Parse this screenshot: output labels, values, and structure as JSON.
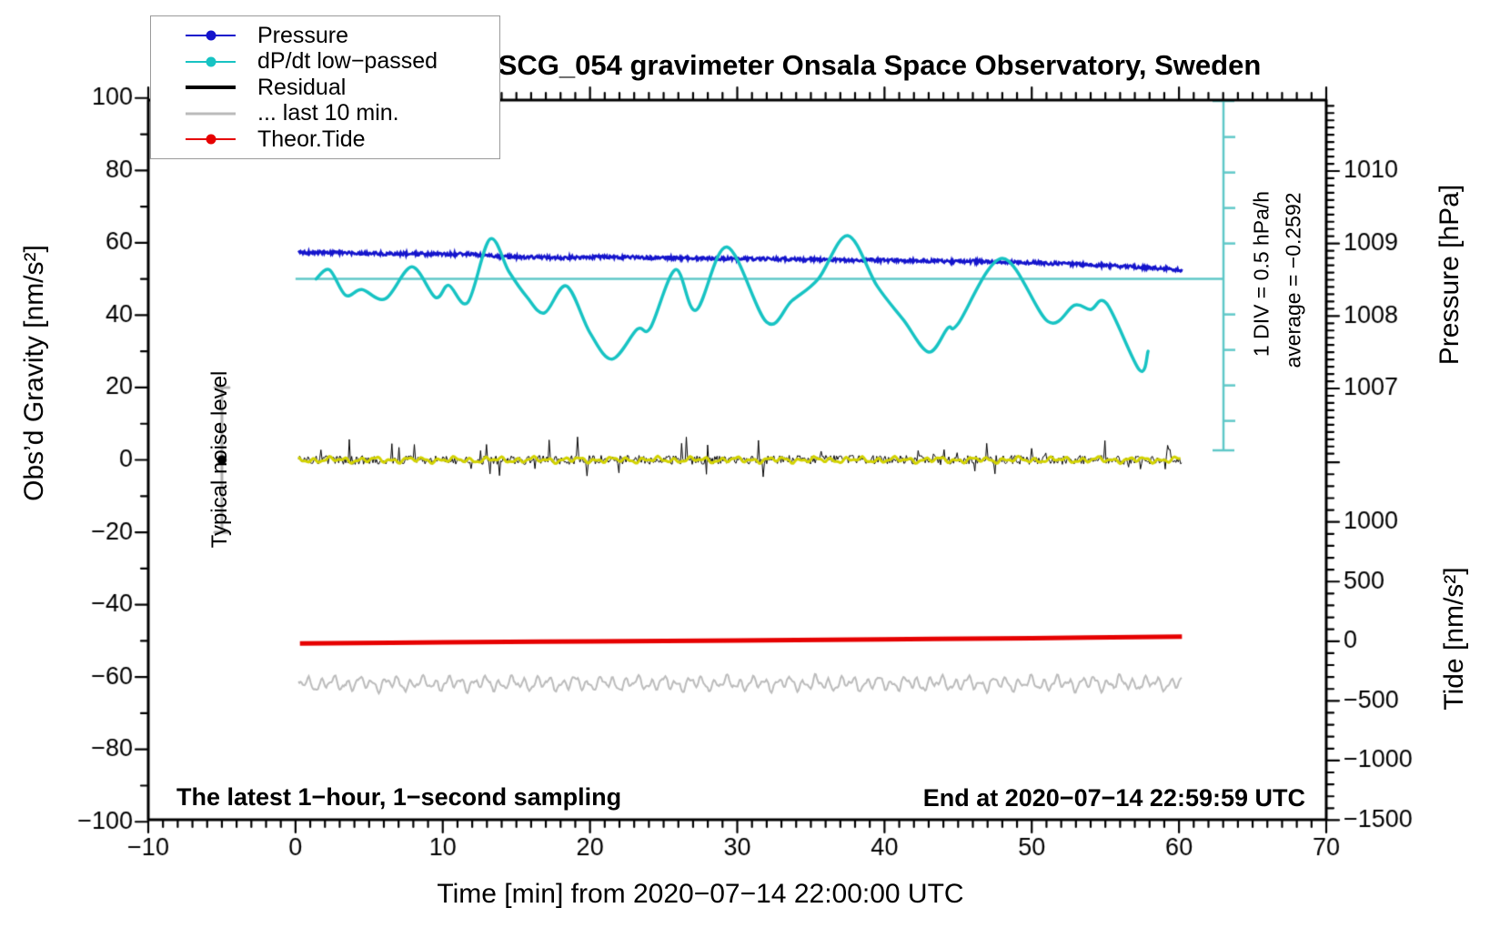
{
  "title": "SCG_054 gravimeter Onsala Space Observatory, Sweden",
  "colors": {
    "pressure_blue": "#1414cc",
    "dpdt_cyan": "#17c3c3",
    "reference_teal": "#5fc8c8",
    "residual_black": "#000000",
    "residual_smooth_yellow": "#d2d200",
    "last10_gray": "#bbbbbb",
    "tide_red": "#e60000",
    "noisebar_gray": "#b0b0b0",
    "frame_black": "#000000"
  },
  "legend": {
    "items": [
      {
        "label": "Pressure",
        "color": "#1414cc",
        "marker": "dot",
        "weight": 2.5
      },
      {
        "label": "dP/dt low−passed",
        "color": "#17c3c3",
        "marker": "dot",
        "weight": 2.5
      },
      {
        "label": "Residual",
        "color": "#000000",
        "marker": "line",
        "weight": 4
      },
      {
        "label": "... last 10 min.",
        "color": "#bbbbbb",
        "marker": "line",
        "weight": 3
      },
      {
        "label": "Theor.Tide",
        "color": "#e60000",
        "marker": "dot",
        "weight": 2.5
      }
    ]
  },
  "axes": {
    "x": {
      "title": "Time [min] from 2020−07−14 22:00:00 UTC",
      "range": [
        -10,
        70
      ],
      "major": 10,
      "minor": 1,
      "ticks": [
        {
          "v": -10,
          "l": "−10"
        },
        {
          "v": 0,
          "l": "0"
        },
        {
          "v": 10,
          "l": "10"
        },
        {
          "v": 20,
          "l": "20"
        },
        {
          "v": 30,
          "l": "30"
        },
        {
          "v": 40,
          "l": "40"
        },
        {
          "v": 50,
          "l": "50"
        },
        {
          "v": 60,
          "l": "60"
        },
        {
          "v": 70,
          "l": "70"
        }
      ]
    },
    "y_left": {
      "title": "Obs’d Gravity [nm/s²]",
      "range": [
        -100,
        100
      ],
      "major": 20,
      "minor": 10,
      "ticks": [
        {
          "v": 100,
          "l": "100"
        },
        {
          "v": 80,
          "l": "80"
        },
        {
          "v": 60,
          "l": "60"
        },
        {
          "v": 40,
          "l": "40"
        },
        {
          "v": 20,
          "l": "20"
        },
        {
          "v": 0,
          "l": "0"
        },
        {
          "v": -20,
          "l": "−20"
        },
        {
          "v": -40,
          "l": "−40"
        },
        {
          "v": -60,
          "l": "−60"
        },
        {
          "v": -80,
          "l": "−80"
        },
        {
          "v": -100,
          "l": "−100"
        }
      ]
    },
    "y_right_pressure": {
      "title": "Pressure [hPa]",
      "minor": 0.1,
      "ticks": [
        {
          "v": 1010,
          "l": "1010"
        },
        {
          "v": 1009,
          "l": "1009"
        },
        {
          "v": 1008,
          "l": "1008"
        },
        {
          "v": 1007,
          "l": "1007"
        }
      ]
    },
    "y_right_tide": {
      "title": "Tide [nm/s²]",
      "minor": 100,
      "ticks": [
        {
          "v": 1000,
          "l": "1000"
        },
        {
          "v": 500,
          "l": "500"
        },
        {
          "v": 0,
          "l": "0"
        },
        {
          "v": -500,
          "l": "−500"
        },
        {
          "v": -1000,
          "l": "−1000"
        },
        {
          "v": -1500,
          "l": "−1500"
        }
      ]
    }
  },
  "annotations": {
    "sampling": "The latest 1−hour, 1−second sampling",
    "end": "End at 2020−07−14 22:59:59 UTC",
    "noise_level": "Typical noise level",
    "div_scale": "1 DIV = 0.5 hPa/h",
    "average": "average = −0.2592"
  },
  "chart_data": {
    "type": "line",
    "title": "SCG_054 gravimeter Onsala Space Observatory, Sweden",
    "xlabel": "Time [min] from 2020-07-14 22:00:00 UTC",
    "x_range_min": [
      -10,
      70
    ],
    "y_left_label": "Obs'd Gravity [nm/s2]",
    "y_left_range": [
      -100,
      100
    ],
    "pressure_axis_labels": [
      1010,
      1009,
      1008,
      1007
    ],
    "tide_axis_labels": [
      1000,
      500,
      0,
      -500,
      -1000,
      -1500
    ],
    "grid": false,
    "legend_position": "top-left",
    "reference": {
      "dpdt_zero_at_gravity": 50,
      "div_value_hpa_per_h": 0.5,
      "dpdt_average_hpa_per_h": -0.2592,
      "noise_bar": {
        "center_gravity": 0,
        "half_span_gravity": 20,
        "time_min": -5
      }
    },
    "series": [
      {
        "name": "Pressure",
        "axis": "pressure",
        "unit": "hPa",
        "color": "#1414cc",
        "width": 2.6,
        "noise_hpa": 0.022,
        "points": [
          [
            0.2,
            1008.88
          ],
          [
            3,
            1008.875
          ],
          [
            6,
            1008.86
          ],
          [
            9,
            1008.855
          ],
          [
            12,
            1008.85
          ],
          [
            14,
            1008.82
          ],
          [
            16,
            1008.81
          ],
          [
            18,
            1008.805
          ],
          [
            21,
            1008.815
          ],
          [
            24,
            1008.805
          ],
          [
            27,
            1008.795
          ],
          [
            30,
            1008.79
          ],
          [
            33,
            1008.785
          ],
          [
            36,
            1008.775
          ],
          [
            39,
            1008.77
          ],
          [
            42,
            1008.765
          ],
          [
            45,
            1008.75
          ],
          [
            47,
            1008.755
          ],
          [
            50,
            1008.735
          ],
          [
            53,
            1008.715
          ],
          [
            56,
            1008.685
          ],
          [
            58,
            1008.665
          ],
          [
            60.2,
            1008.635
          ]
        ]
      },
      {
        "name": "dP/dt low-passed",
        "axis": "dpdt",
        "unit": "hPa/h",
        "color": "#17c3c3",
        "width": 3.5,
        "points": [
          [
            1.4,
            0.0
          ],
          [
            2.3,
            0.13
          ],
          [
            3.4,
            -0.23
          ],
          [
            4.5,
            -0.15
          ],
          [
            6.1,
            -0.28
          ],
          [
            7.9,
            0.17
          ],
          [
            9.5,
            -0.26
          ],
          [
            10.4,
            -0.09
          ],
          [
            11.7,
            -0.33
          ],
          [
            13.2,
            0.56
          ],
          [
            14.5,
            0.1
          ],
          [
            15.7,
            -0.25
          ],
          [
            16.9,
            -0.48
          ],
          [
            18.4,
            -0.1
          ],
          [
            20.0,
            -0.76
          ],
          [
            21.5,
            -1.13
          ],
          [
            23.2,
            -0.71
          ],
          [
            24.1,
            -0.69
          ],
          [
            25.8,
            0.13
          ],
          [
            27.2,
            -0.44
          ],
          [
            29.3,
            0.45
          ],
          [
            32.0,
            -0.61
          ],
          [
            33.7,
            -0.31
          ],
          [
            35.5,
            0.0
          ],
          [
            37.5,
            0.61
          ],
          [
            39.5,
            -0.1
          ],
          [
            41.3,
            -0.58
          ],
          [
            43.0,
            -1.03
          ],
          [
            44.3,
            -0.69
          ],
          [
            45.0,
            -0.63
          ],
          [
            48.0,
            0.29
          ],
          [
            51.1,
            -0.6
          ],
          [
            52.9,
            -0.37
          ],
          [
            54.0,
            -0.43
          ],
          [
            55.1,
            -0.35
          ],
          [
            57.3,
            -1.28
          ],
          [
            57.9,
            -1.02
          ]
        ]
      },
      {
        "name": "Residual",
        "axis": "gravity",
        "unit": "nm/s2",
        "color": "#000000",
        "type": "noise",
        "center": 0,
        "sigma": 1.25,
        "spike_max": 5.5,
        "width": 1,
        "t_span": [
          0.2,
          60.2
        ]
      },
      {
        "name": "Residual smoothed",
        "axis": "gravity",
        "color": "#d2d200",
        "type": "wiggle",
        "center": 0,
        "amplitude": 0.8,
        "width": 3,
        "t_span": [
          0.2,
          60.2
        ]
      },
      {
        "name": "... last 10 min.",
        "axis": "gravity",
        "color": "#bbbbbb",
        "type": "wiggle",
        "center": -61.8,
        "amplitude": 2.2,
        "width": 2,
        "t_span": [
          0.2,
          60.2
        ]
      },
      {
        "name": "Theor.Tide",
        "axis": "tide",
        "unit": "nm/s2",
        "color": "#e60000",
        "width": 5,
        "points": [
          [
            0.3,
            -18
          ],
          [
            10,
            -9
          ],
          [
            20,
            -1
          ],
          [
            30,
            7
          ],
          [
            40,
            16
          ],
          [
            50,
            26
          ],
          [
            60.2,
            38
          ]
        ]
      }
    ]
  }
}
